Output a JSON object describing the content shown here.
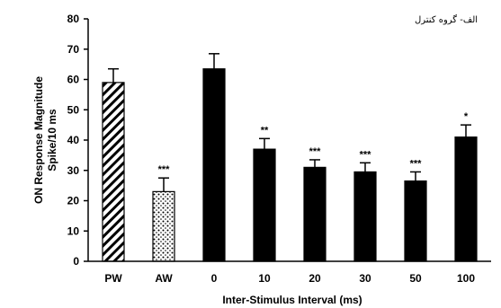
{
  "chart_data": {
    "type": "bar",
    "title": "الف- گروه کنترل",
    "xlabel": "Inter-Stimulus Interval (ms)",
    "ylabel_lines": [
      "ON Response Magnitude",
      "Spike/10 ms"
    ],
    "ylim": [
      0,
      80
    ],
    "yticks": [
      0,
      10,
      20,
      30,
      40,
      50,
      60,
      70,
      80
    ],
    "grid": false,
    "categories": [
      "PW",
      "AW",
      "0",
      "10",
      "20",
      "30",
      "50",
      "100"
    ],
    "values": [
      59,
      23,
      63.5,
      37,
      31,
      29.5,
      26.5,
      41
    ],
    "errors": [
      4.5,
      4.5,
      5,
      3.5,
      2.5,
      3,
      3,
      4
    ],
    "significance": [
      "",
      "***",
      "",
      "**",
      "***",
      "***",
      "***",
      "*"
    ],
    "patterns": [
      "hatch",
      "dots",
      "solid",
      "solid",
      "solid",
      "solid",
      "solid",
      "solid"
    ],
    "colors": {
      "bar": "#000000",
      "background": "#ffffff"
    }
  }
}
